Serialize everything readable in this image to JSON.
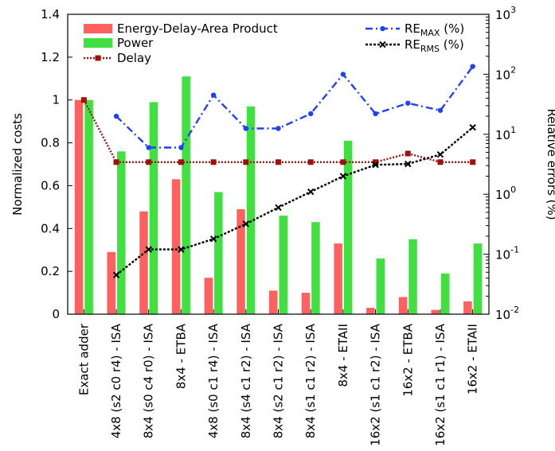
{
  "chart_data": {
    "type": "bar",
    "categories": [
      "Exact adder",
      "4x8 (s2 c0 r4) - ISA",
      "8x4 (s0 c4 r0) - ISA",
      "8x4 - ETBA",
      "4x8 (s0 c1 r4) - ISA",
      "8x4 (s4 c1 r2) - ISA",
      "8x4 (s2 c1 r2) - ISA",
      "8x4 (s1 c1 r2) - ISA",
      "8x4 - ETAII",
      "16x2 (s1 c1 r2) - ISA",
      "16x2 - ETBA",
      "16x2 (s1 c1 r1) - ISA",
      "16x2 - ETAII"
    ],
    "left_axis": {
      "label": "Normalized costs",
      "ylim": [
        0,
        1.4
      ],
      "ticks": [
        "0",
        "0.2",
        "0.4",
        "0.6",
        "0.8",
        "1",
        "1.2",
        "1.4"
      ]
    },
    "right_axis": {
      "label": "Relative errors (%)",
      "scale": "log",
      "ylim": [
        0.01,
        1000
      ],
      "ticks": [
        {
          "base": "10",
          "exp": "-2"
        },
        {
          "base": "10",
          "exp": "-1"
        },
        {
          "base": "10",
          "exp": "0"
        },
        {
          "base": "10",
          "exp": "1"
        },
        {
          "base": "10",
          "exp": "2"
        },
        {
          "base": "10",
          "exp": "3"
        }
      ]
    },
    "series": [
      {
        "name": "Energy-Delay-Area Product",
        "kind": "bar",
        "axis": "left",
        "color": "#ff6060",
        "values": [
          1.0,
          0.29,
          0.48,
          0.63,
          0.17,
          0.49,
          0.11,
          0.1,
          0.33,
          0.03,
          0.08,
          0.02,
          0.06
        ]
      },
      {
        "name": "Power",
        "kind": "bar",
        "axis": "left",
        "color": "#40e040",
        "values": [
          1.0,
          0.76,
          0.99,
          1.11,
          0.57,
          0.97,
          0.46,
          0.43,
          0.81,
          0.26,
          0.35,
          0.19,
          0.33
        ]
      },
      {
        "name": "Delay",
        "kind": "line",
        "axis": "left",
        "color": "#a01010",
        "values": [
          1.0,
          0.71,
          0.71,
          0.71,
          0.71,
          0.71,
          0.71,
          0.71,
          0.71,
          0.71,
          0.75,
          0.71,
          0.71
        ]
      },
      {
        "name": "RE_MAX (%)",
        "label_main": "RE",
        "label_sub": "MAX",
        "label_tail": " (%)",
        "kind": "line",
        "axis": "right",
        "color": "#2040ff",
        "values": [
          null,
          20,
          6,
          6,
          45,
          12.5,
          12.5,
          22,
          100,
          22,
          33,
          25,
          135
        ]
      },
      {
        "name": "RE_RMS (%)",
        "label_main": "RE",
        "label_sub": "RMS",
        "label_tail": " (%)",
        "kind": "line",
        "axis": "right",
        "color": "#000000",
        "values": [
          null,
          0.045,
          0.12,
          0.12,
          0.18,
          0.32,
          0.6,
          1.1,
          2.0,
          3.1,
          3.2,
          4.6,
          13
        ]
      }
    ],
    "legend_left_position": "top-left",
    "legend_right_position": "top-right",
    "grid": false
  }
}
